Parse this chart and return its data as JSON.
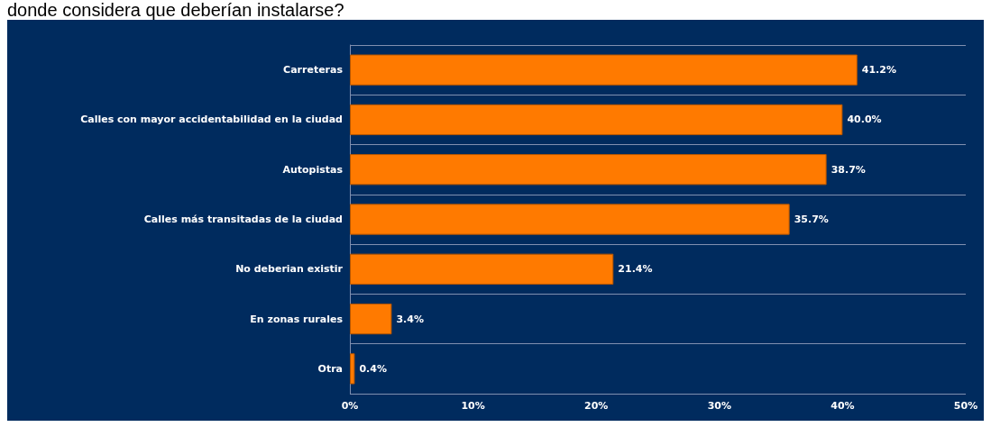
{
  "chart_data": {
    "type": "bar",
    "orientation": "horizontal",
    "title": "donde considera que deberían instalarse?",
    "categories": [
      "Carreteras",
      "Calles con mayor accidentabilidad en la ciudad",
      "Autopistas",
      "Calles más transitadas de la ciudad",
      "No deberian existir",
      "En zonas rurales",
      "Otra"
    ],
    "values": [
      41.2,
      40.0,
      38.7,
      35.7,
      21.4,
      3.4,
      0.4
    ],
    "value_labels": [
      "41.2%",
      "40.0%",
      "38.7%",
      "35.7%",
      "21.4%",
      "3.4%",
      "0.4%"
    ],
    "color": "#ff7a00",
    "xlim": [
      0,
      50
    ],
    "xticks": [
      {
        "value": 0,
        "label": "0%"
      },
      {
        "value": 10,
        "label": "10%"
      },
      {
        "value": 20,
        "label": "20%"
      },
      {
        "value": 30,
        "label": "30%"
      },
      {
        "value": 40,
        "label": "40%"
      },
      {
        "value": 50,
        "label": "50%"
      }
    ],
    "grid": "y"
  }
}
